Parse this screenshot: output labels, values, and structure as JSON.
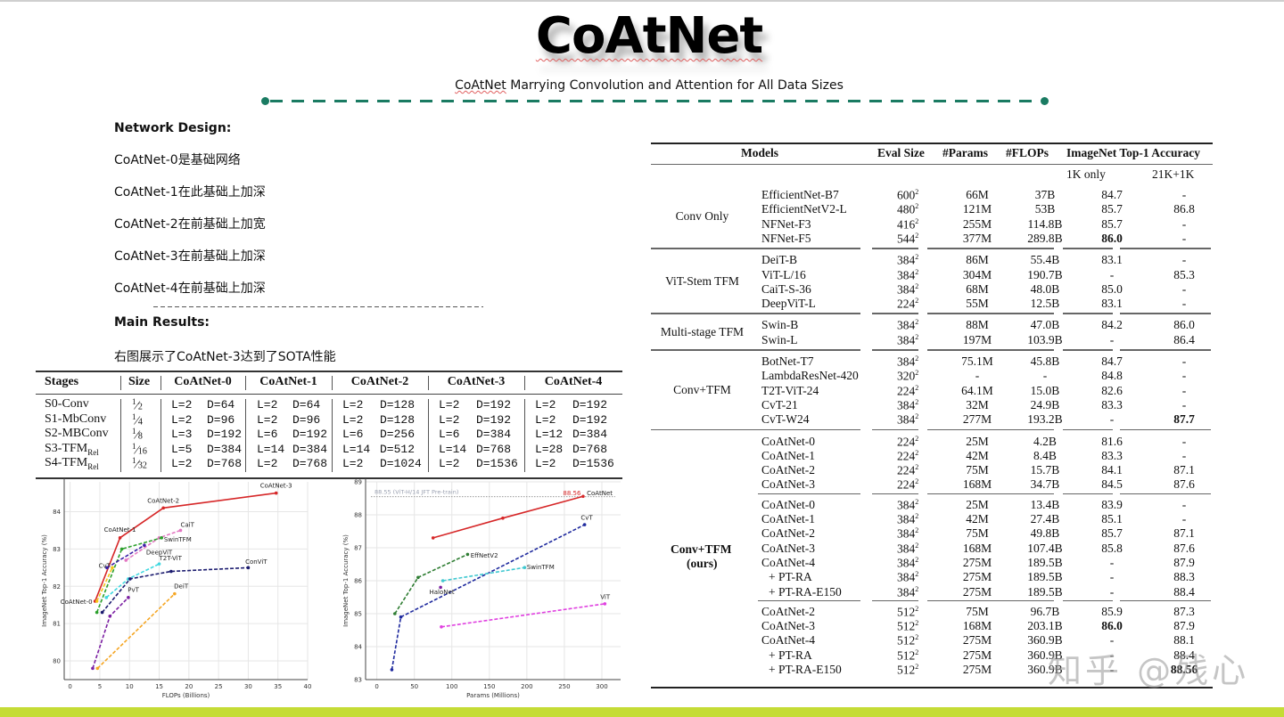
{
  "header": {
    "title": "CoAtNet",
    "subtitle_prefix": "CoAtNet",
    "subtitle_rest": " Marrying Convolution and Attention for All Data Sizes",
    "accent_color": "#1a7b62"
  },
  "network_design": {
    "heading": "Network Design:",
    "lines": [
      "CoAtNet-0是基础网络",
      "CoAtNet-1在此基础上加深",
      "CoAtNet-2在前基础上加宽",
      "CoAtNet-3在前基础上加深",
      "CoAtNet-4在前基础上加深"
    ]
  },
  "main_results": {
    "heading": "Main Results:",
    "text": "右图展示了CoAtNet-3达到了SOTA性能"
  },
  "stage_table": {
    "headers": [
      "Stages",
      "Size",
      "CoAtNet-0",
      "CoAtNet-1",
      "CoAtNet-2",
      "CoAtNet-3",
      "CoAtNet-4"
    ],
    "rows": [
      {
        "stage": "S0-Conv",
        "sub": "",
        "size": "1/2",
        "cells": [
          [
            "L=2",
            "D=64"
          ],
          [
            "L=2",
            "D=64"
          ],
          [
            "L=2",
            "D=128"
          ],
          [
            "L=2",
            "D=192"
          ],
          [
            "L=2",
            "D=192"
          ]
        ]
      },
      {
        "stage": "S1-MbConv",
        "sub": "",
        "size": "1/4",
        "cells": [
          [
            "L=2",
            "D=96"
          ],
          [
            "L=2",
            "D=96"
          ],
          [
            "L=2",
            "D=128"
          ],
          [
            "L=2",
            "D=192"
          ],
          [
            "L=2",
            "D=192"
          ]
        ]
      },
      {
        "stage": "S2-MBConv",
        "sub": "",
        "size": "1/8",
        "cells": [
          [
            "L=3",
            "D=192"
          ],
          [
            "L=6",
            "D=192"
          ],
          [
            "L=6",
            "D=256"
          ],
          [
            "L=6",
            "D=384"
          ],
          [
            "L=12",
            "D=384"
          ]
        ]
      },
      {
        "stage": "S3-TFM",
        "sub": "Rel",
        "size": "1/16",
        "cells": [
          [
            "L=5",
            "D=384"
          ],
          [
            "L=14",
            "D=384"
          ],
          [
            "L=14",
            "D=512"
          ],
          [
            "L=14",
            "D=768"
          ],
          [
            "L=28",
            "D=768"
          ]
        ]
      },
      {
        "stage": "S4-TFM",
        "sub": "Rel",
        "size": "1/32",
        "cells": [
          [
            "L=2",
            "D=768"
          ],
          [
            "L=2",
            "D=768"
          ],
          [
            "L=2",
            "D=1024"
          ],
          [
            "L=2",
            "D=1536"
          ],
          [
            "L=2",
            "D=1536"
          ]
        ]
      }
    ]
  },
  "chart_data": [
    {
      "type": "line",
      "title": "",
      "xlabel": "FLOPs (Billions)",
      "ylabel": "ImageNet Top-1 Accuracy (%)",
      "xlim": [
        -1,
        40
      ],
      "ylim": [
        79.5,
        84.8
      ],
      "xticks": [
        0,
        5,
        10,
        15,
        20,
        25,
        30,
        35,
        40
      ],
      "yticks": [
        80,
        81,
        82,
        83,
        84
      ],
      "grid": true,
      "series": [
        {
          "name": "CoAtNet",
          "color": "#d62728",
          "style": "solid",
          "x": [
            4.2,
            8.4,
            15.7,
            34.7
          ],
          "y": [
            81.6,
            83.3,
            84.1,
            84.5
          ],
          "labels": [
            "CoAtNet-0",
            "CoAtNet-1",
            "CoAtNet-2",
            "CoAtNet-3"
          ]
        },
        {
          "name": "CaiT",
          "color": "#e377c2",
          "style": "dashed",
          "x": [
            9.4,
            15.0,
            18.6
          ],
          "y": [
            82.7,
            83.3,
            83.5
          ]
        },
        {
          "name": "SwinTFM",
          "color": "#2ca02c",
          "style": "dashed",
          "x": [
            4.5,
            8.7,
            15.4
          ],
          "y": [
            81.3,
            83.0,
            83.3
          ]
        },
        {
          "name": "DeepViT",
          "color": "#3b1fa8",
          "style": "dashed",
          "x": [
            6.2,
            12.5
          ],
          "y": [
            82.5,
            83.1
          ]
        },
        {
          "name": "CvT",
          "color": "#f5c518",
          "style": "dashed",
          "x": [
            4.5,
            7.1
          ],
          "y": [
            81.6,
            82.5
          ]
        },
        {
          "name": "T2T-ViT",
          "color": "#40d8e0",
          "style": "dashed",
          "x": [
            6.1,
            9.8,
            15.0
          ],
          "y": [
            81.7,
            82.2,
            82.6
          ]
        },
        {
          "name": "ConViT",
          "color": "#1a1a6e",
          "style": "dashed",
          "x": [
            5.4,
            10.1,
            17.0,
            30.0
          ],
          "y": [
            81.3,
            82.2,
            82.4,
            82.5
          ]
        },
        {
          "name": "PvT",
          "color": "#7b1fa2",
          "style": "dashed",
          "x": [
            3.8,
            6.7,
            9.8
          ],
          "y": [
            79.8,
            81.2,
            81.7
          ]
        },
        {
          "name": "DeiT",
          "color": "#f5a623",
          "style": "dashed",
          "x": [
            4.6,
            17.6
          ],
          "y": [
            79.8,
            81.8
          ]
        }
      ]
    },
    {
      "type": "line",
      "title": "",
      "xlabel": "Params (Millions)",
      "ylabel": "ImageNet Top-1 Accuracy (%)",
      "xlim": [
        -15,
        325
      ],
      "ylim": [
        83,
        89
      ],
      "xticks": [
        0,
        50,
        100,
        150,
        200,
        250,
        300
      ],
      "yticks": [
        83,
        84,
        85,
        86,
        87,
        88,
        89
      ],
      "grid": true,
      "reference_line": {
        "y": 88.55,
        "label": "88.55 (ViT-H/14 JFT Pre-train)"
      },
      "annotation": {
        "text": "88.56",
        "color": "#d62728"
      },
      "series": [
        {
          "name": "CoAtNet",
          "color": "#d62728",
          "style": "solid",
          "x": [
            75,
            168,
            275
          ],
          "y": [
            87.3,
            87.9,
            88.56
          ]
        },
        {
          "name": "CvT",
          "color": "#1f2a9e",
          "style": "dashed",
          "x": [
            20,
            32,
            277
          ],
          "y": [
            83.3,
            84.9,
            87.7
          ]
        },
        {
          "name": "EffNetV2",
          "color": "#2e7d32",
          "style": "dashed",
          "x": [
            24,
            55,
            121
          ],
          "y": [
            85.0,
            86.1,
            86.8
          ]
        },
        {
          "name": "SwinTFM",
          "color": "#40c8d0",
          "style": "dashed",
          "x": [
            88,
            197
          ],
          "y": [
            86.0,
            86.4
          ]
        },
        {
          "name": "HaloNet",
          "color": "#7b1fa2",
          "style": "marker",
          "x": [
            85
          ],
          "y": [
            85.8
          ]
        },
        {
          "name": "ViT",
          "color": "#e040e0",
          "style": "dashed",
          "x": [
            86,
            304
          ],
          "y": [
            84.6,
            85.3
          ]
        }
      ]
    }
  ],
  "results_table": {
    "headers": {
      "models": "Models",
      "eval_size": "Eval Size",
      "params": "#Params",
      "flops": "#FLOPs",
      "accuracy": "ImageNet Top-1 Accuracy",
      "sub_1k": "1K only",
      "sub_21k": "21K+1K"
    },
    "groups": [
      {
        "name": "Conv Only",
        "rows": [
          {
            "model": "EfficientNet-B7",
            "size": "600",
            "params": "66M",
            "flops": "37B",
            "acc1k": "84.7",
            "acc21k": "-"
          },
          {
            "model": "EfficientNetV2-L",
            "size": "480",
            "params": "121M",
            "flops": "53B",
            "acc1k": "85.7",
            "acc21k": "86.8"
          },
          {
            "model": "NFNet-F3",
            "size": "416",
            "params": "255M",
            "flops": "114.8B",
            "acc1k": "85.7",
            "acc21k": "-"
          },
          {
            "model": "NFNet-F5",
            "size": "544",
            "params": "377M",
            "flops": "289.8B",
            "acc1k": "86.0",
            "acc21k": "-"
          }
        ]
      },
      {
        "name": "ViT-Stem TFM",
        "rows": [
          {
            "model": "DeiT-B",
            "size": "384",
            "params": "86M",
            "flops": "55.4B",
            "acc1k": "83.1",
            "acc21k": "-"
          },
          {
            "model": "ViT-L/16",
            "size": "384",
            "params": "304M",
            "flops": "190.7B",
            "acc1k": "-",
            "acc21k": "85.3"
          },
          {
            "model": "CaiT-S-36",
            "size": "384",
            "params": "68M",
            "flops": "48.0B",
            "acc1k": "85.0",
            "acc21k": "-"
          },
          {
            "model": "DeepViT-L",
            "size": "224",
            "params": "55M",
            "flops": "12.5B",
            "acc1k": "83.1",
            "acc21k": "-"
          }
        ]
      },
      {
        "name": "Multi-stage TFM",
        "rows": [
          {
            "model": "Swin-B",
            "size": "384",
            "params": "88M",
            "flops": "47.0B",
            "acc1k": "84.2",
            "acc21k": "86.0"
          },
          {
            "model": "Swin-L",
            "size": "384",
            "params": "197M",
            "flops": "103.9B",
            "acc1k": "-",
            "acc21k": "86.4"
          }
        ]
      },
      {
        "name": "Conv+TFM",
        "rows": [
          {
            "model": "BotNet-T7",
            "size": "384",
            "params": "75.1M",
            "flops": "45.8B",
            "acc1k": "84.7",
            "acc21k": "-"
          },
          {
            "model": "LambdaResNet-420",
            "size": "320",
            "params": "-",
            "flops": "-",
            "acc1k": "84.8",
            "acc21k": "-"
          },
          {
            "model": "T2T-ViT-24",
            "size": "224",
            "params": "64.1M",
            "flops": "15.0B",
            "acc1k": "82.6",
            "acc21k": "-"
          },
          {
            "model": "CvT-21",
            "size": "384",
            "params": "32M",
            "flops": "24.9B",
            "acc1k": "83.3",
            "acc21k": "-"
          },
          {
            "model": "CvT-W24",
            "size": "384",
            "params": "277M",
            "flops": "193.2B",
            "acc1k": "-",
            "acc21k": "87.7"
          }
        ]
      },
      {
        "name": "Conv+TFM",
        "name2": "(ours)",
        "rows": [
          {
            "model": "CoAtNet-0",
            "size": "224",
            "params": "25M",
            "flops": "4.2B",
            "acc1k": "81.6",
            "acc21k": "-"
          },
          {
            "model": "CoAtNet-1",
            "size": "224",
            "params": "42M",
            "flops": "8.4B",
            "acc1k": "83.3",
            "acc21k": "-"
          },
          {
            "model": "CoAtNet-2",
            "size": "224",
            "params": "75M",
            "flops": "15.7B",
            "acc1k": "84.1",
            "acc21k": "87.1"
          },
          {
            "model": "CoAtNet-3",
            "size": "224",
            "params": "168M",
            "flops": "34.7B",
            "acc1k": "84.5",
            "acc21k": "87.6"
          },
          {
            "model": "CoAtNet-0",
            "size": "384",
            "params": "25M",
            "flops": "13.4B",
            "acc1k": "83.9",
            "acc21k": "-"
          },
          {
            "model": "CoAtNet-1",
            "size": "384",
            "params": "42M",
            "flops": "27.4B",
            "acc1k": "85.1",
            "acc21k": "-"
          },
          {
            "model": "CoAtNet-2",
            "size": "384",
            "params": "75M",
            "flops": "49.8B",
            "acc1k": "85.7",
            "acc21k": "87.1"
          },
          {
            "model": "CoAtNet-3",
            "size": "384",
            "params": "168M",
            "flops": "107.4B",
            "acc1k": "85.8",
            "acc21k": "87.6"
          },
          {
            "model": "CoAtNet-4",
            "size": "384",
            "params": "275M",
            "flops": "189.5B",
            "acc1k": "-",
            "acc21k": "87.9"
          },
          {
            "model": "+ PT-RA",
            "size": "384",
            "params": "275M",
            "flops": "189.5B",
            "acc1k": "-",
            "acc21k": "88.3"
          },
          {
            "model": "+ PT-RA-E150",
            "size": "384",
            "params": "275M",
            "flops": "189.5B",
            "acc1k": "-",
            "acc21k": "88.4"
          },
          {
            "model": "CoAtNet-2",
            "size": "512",
            "params": "75M",
            "flops": "96.7B",
            "acc1k": "85.9",
            "acc21k": "87.3"
          },
          {
            "model": "CoAtNet-3",
            "size": "512",
            "params": "168M",
            "flops": "203.1B",
            "acc1k": "86.0",
            "acc21k": "87.9"
          },
          {
            "model": "CoAtNet-4",
            "size": "512",
            "params": "275M",
            "flops": "360.9B",
            "acc1k": "-",
            "acc21k": "88.1"
          },
          {
            "model": "+ PT-RA",
            "size": "512",
            "params": "275M",
            "flops": "360.9B",
            "acc1k": "-",
            "acc21k": "88.4"
          },
          {
            "model": "+ PT-RA-E150",
            "size": "512",
            "params": "275M",
            "flops": "360.9B",
            "acc1k": "-",
            "acc21k": "88.56"
          }
        ]
      }
    ]
  },
  "watermark": "知乎 @残心",
  "footer": {
    "bar_color": "#c5dc36"
  }
}
